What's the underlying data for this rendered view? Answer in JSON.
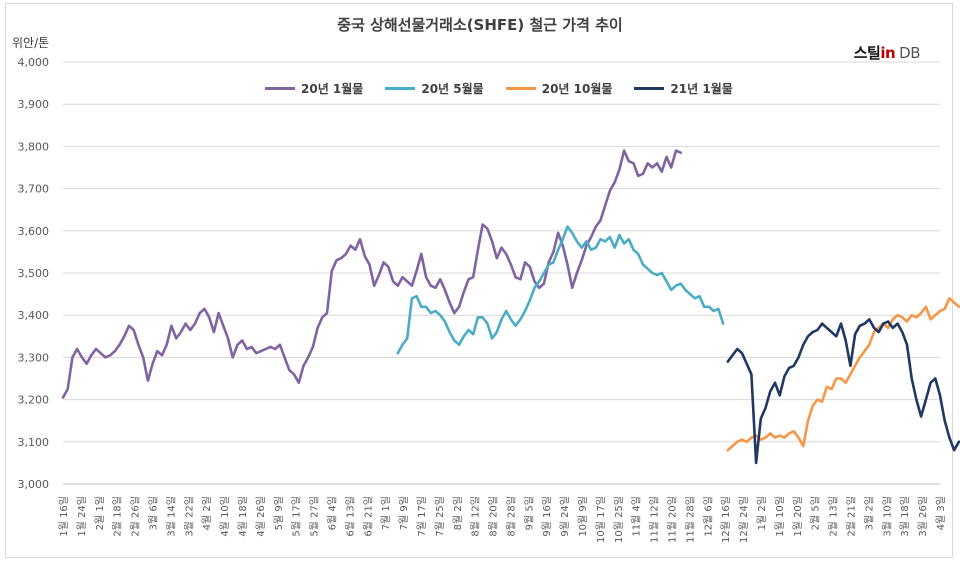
{
  "chart_data": {
    "type": "line",
    "title": "중국 상해선물거래소(SHFE) 철근 가격 추이",
    "ylabel": "위안/톤",
    "brand": {
      "main": "스틸",
      "accent": "in",
      "suffix": "DB"
    },
    "ylim": [
      3000,
      4000
    ],
    "yticks": [
      "3,000",
      "3,100",
      "3,200",
      "3,300",
      "3,400",
      "3,500",
      "3,600",
      "3,700",
      "3,800",
      "3,900",
      "4,000"
    ],
    "grid": "horizontal",
    "legend_position": "top",
    "x_count": 187,
    "x_labels": [
      "1월 16일",
      "1월 24일",
      "2월 1일",
      "2월 18일",
      "2월 26일",
      "3월 6일",
      "3월 14일",
      "3월 22일",
      "4월 2일",
      "4월 10일",
      "4월 18일",
      "4월 26일",
      "5월 9일",
      "5월 17일",
      "5월 27일",
      "6월 4일",
      "6월 13일",
      "6월 21일",
      "7월 1일",
      "7월 9일",
      "7월 17일",
      "7월 25일",
      "8월 2일",
      "8월 12일",
      "8월 20일",
      "8월 28일",
      "9월 5일",
      "9월 16일",
      "9월 24일",
      "10월 9일",
      "10월 17일",
      "10월 25일",
      "11월 4일",
      "11월 12일",
      "11월 20일",
      "11월 28일",
      "12월 6일",
      "12월 16일",
      "12월 24일",
      "1월 2일",
      "1월 10일",
      "1월 20일",
      "2월 5일",
      "2월 13일",
      "2월 21일",
      "3월 2일",
      "3월 10일",
      "3월 18일",
      "3월 26일",
      "4월 3일"
    ],
    "series": [
      {
        "name": "20년 1월물",
        "color": "#8064a2",
        "start": 0,
        "values": [
          3205,
          3225,
          3300,
          3320,
          3300,
          3285,
          3305,
          3320,
          3310,
          3300,
          3305,
          3315,
          3330,
          3350,
          3375,
          3365,
          3330,
          3300,
          3245,
          3285,
          3315,
          3305,
          3330,
          3375,
          3345,
          3360,
          3380,
          3365,
          3380,
          3405,
          3415,
          3395,
          3360,
          3405,
          3375,
          3345,
          3300,
          3330,
          3340,
          3320,
          3325,
          3310,
          3315,
          3320,
          3325,
          3320,
          3330,
          3300,
          3270,
          3260,
          3240,
          3280,
          3300,
          3325,
          3370,
          3395,
          3405,
          3505,
          3530,
          3535,
          3545,
          3565,
          3555,
          3580,
          3540,
          3520,
          3470,
          3495,
          3525,
          3515,
          3480,
          3470,
          3490,
          3480,
          3470,
          3505,
          3545,
          3490,
          3470,
          3465,
          3485,
          3460,
          3430,
          3405,
          3420,
          3455,
          3485,
          3490,
          3555,
          3615,
          3605,
          3575,
          3535,
          3560,
          3545,
          3520,
          3490,
          3485,
          3525,
          3515,
          3480,
          3465,
          3475,
          3525,
          3550,
          3595,
          3565,
          3520,
          3465,
          3500,
          3530,
          3565,
          3585,
          3610,
          3625,
          3660,
          3695,
          3715,
          3745,
          3790,
          3765,
          3760,
          3730,
          3735,
          3760,
          3750,
          3760,
          3740,
          3775,
          3750,
          3790,
          3785
        ]
      },
      {
        "name": "20년 5월물",
        "color": "#4bacc6",
        "start": 71,
        "values": [
          3310,
          3330,
          3345,
          3440,
          3445,
          3420,
          3420,
          3405,
          3410,
          3400,
          3385,
          3360,
          3340,
          3330,
          3350,
          3365,
          3355,
          3395,
          3395,
          3380,
          3345,
          3360,
          3390,
          3410,
          3390,
          3375,
          3390,
          3410,
          3435,
          3465,
          3480,
          3500,
          3520,
          3525,
          3555,
          3580,
          3610,
          3595,
          3575,
          3560,
          3575,
          3555,
          3560,
          3580,
          3575,
          3585,
          3560,
          3590,
          3570,
          3580,
          3555,
          3545,
          3520,
          3510,
          3500,
          3495,
          3500,
          3480,
          3460,
          3470,
          3475,
          3460,
          3450,
          3440,
          3445,
          3420,
          3420,
          3410,
          3415,
          3380
        ]
      },
      {
        "name": "20년 10월물",
        "color": "#f79646",
        "start": 141,
        "values": [
          3080,
          3090,
          3100,
          3105,
          3100,
          3110,
          3115,
          3105,
          3110,
          3120,
          3110,
          3115,
          3110,
          3120,
          3125,
          3110,
          3090,
          3150,
          3185,
          3200,
          3195,
          3230,
          3225,
          3250,
          3250,
          3240,
          3260,
          3280,
          3300,
          3315,
          3330,
          3360,
          3370,
          3380,
          3370,
          3390,
          3400,
          3395,
          3385,
          3400,
          3395,
          3405,
          3420,
          3390,
          3400,
          3410,
          3415,
          3440,
          3430,
          3420
        ]
      },
      {
        "name": "21년 1월물",
        "color": "#1f3864",
        "start": 141,
        "values": [
          3290,
          3305,
          3320,
          3310,
          3285,
          3260,
          3050,
          3155,
          3180,
          3220,
          3240,
          3210,
          3255,
          3275,
          3280,
          3300,
          3330,
          3350,
          3360,
          3365,
          3380,
          3370,
          3360,
          3350,
          3380,
          3340,
          3280,
          3355,
          3375,
          3380,
          3390,
          3370,
          3360,
          3380,
          3385,
          3370,
          3380,
          3360,
          3330,
          3250,
          3200,
          3160,
          3200,
          3240,
          3250,
          3210,
          3150,
          3110,
          3080,
          3100
        ]
      }
    ]
  }
}
